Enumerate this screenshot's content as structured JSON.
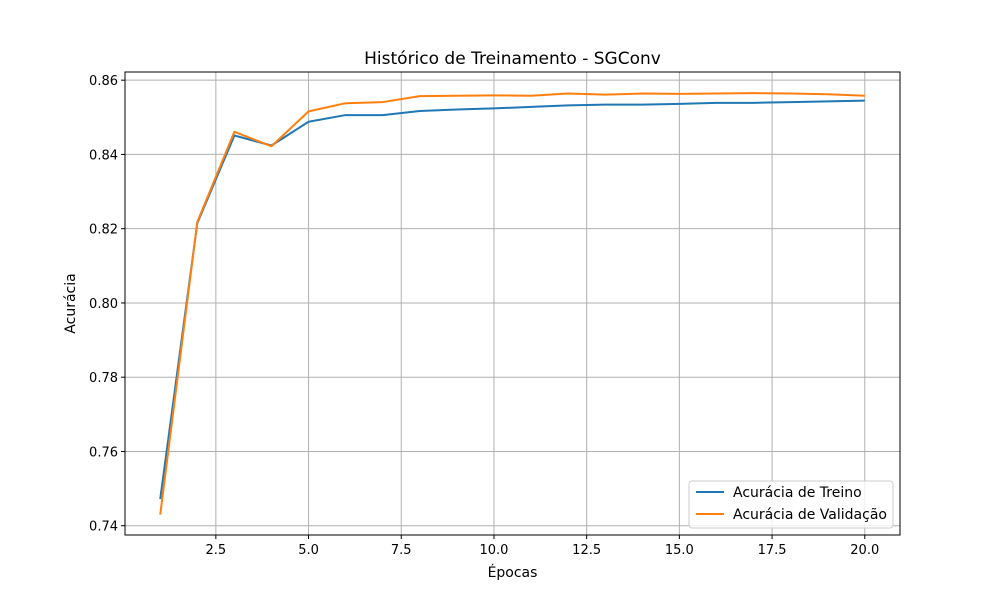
{
  "chart_data": {
    "type": "line",
    "title": "Histórico de Treinamento - SGConv",
    "xlabel": "Épocas",
    "ylabel": "Acurácia",
    "xlim": [
      0.05,
      20.95
    ],
    "ylim": [
      0.7375,
      0.8622
    ],
    "xticks": [
      2.5,
      5.0,
      7.5,
      10.0,
      12.5,
      15.0,
      17.5,
      20.0
    ],
    "xtick_labels": [
      "2.5",
      "5.0",
      "7.5",
      "10.0",
      "12.5",
      "15.0",
      "17.5",
      "20.0"
    ],
    "yticks": [
      0.74,
      0.76,
      0.78,
      0.8,
      0.82,
      0.84,
      0.86
    ],
    "ytick_labels": [
      "0.74",
      "0.76",
      "0.78",
      "0.80",
      "0.82",
      "0.84",
      "0.86"
    ],
    "grid": true,
    "legend_position": "lower-right",
    "x": [
      1,
      2,
      3,
      4,
      5,
      6,
      7,
      8,
      9,
      10,
      11,
      12,
      13,
      14,
      15,
      16,
      17,
      18,
      19,
      20
    ],
    "series": [
      {
        "name": "Acurácia de Treino",
        "color": "#1f77b4",
        "values": [
          0.7472,
          0.8215,
          0.8451,
          0.8424,
          0.8488,
          0.8506,
          0.8506,
          0.8517,
          0.8521,
          0.8524,
          0.8528,
          0.8532,
          0.8534,
          0.8534,
          0.8536,
          0.8539,
          0.8539,
          0.8541,
          0.8543,
          0.8545
        ]
      },
      {
        "name": "Acurácia de Validação",
        "color": "#ff7f0e",
        "values": [
          0.743,
          0.8218,
          0.8461,
          0.8422,
          0.8516,
          0.8538,
          0.8541,
          0.8557,
          0.8558,
          0.8559,
          0.8558,
          0.8564,
          0.8561,
          0.8564,
          0.8563,
          0.8564,
          0.8565,
          0.8564,
          0.8562,
          0.8558
        ]
      }
    ]
  }
}
